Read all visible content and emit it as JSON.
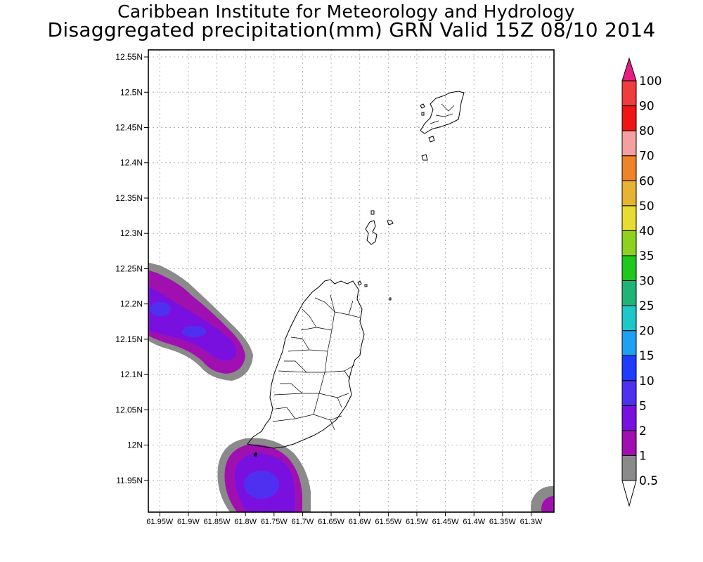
{
  "header": {
    "title": "Caribbean Institute for Meteorology and Hydrology",
    "subtitle": "Disaggregated precipitation(mm) GRN Valid 15Z 08/10 2014"
  },
  "map": {
    "lon_range": [
      -61.97,
      -61.26
    ],
    "lat_range": [
      11.905,
      12.56
    ],
    "y_ticks": [
      "12.55N",
      "12.5N",
      "12.45N",
      "12.4N",
      "12.35N",
      "12.3N",
      "12.25N",
      "12.2N",
      "12.15N",
      "12.1N",
      "12.05N",
      "12N",
      "11.95N"
    ],
    "x_ticks": [
      "61.95W",
      "61.9W",
      "61.85W",
      "61.8W",
      "61.75W",
      "61.7W",
      "61.65W",
      "61.6W",
      "61.55W",
      "61.5W",
      "61.45W",
      "61.4W",
      "61.35W",
      "61.3W"
    ],
    "grid": "dotted",
    "islands": [
      "Grenada",
      "Carriacou",
      "Petite Martinique",
      "Grenadines islets"
    ]
  },
  "colorbar": {
    "labels": [
      "0.5",
      "1",
      "2",
      "5",
      "10",
      "15",
      "20",
      "25",
      "30",
      "35",
      "40",
      "50",
      "60",
      "70",
      "80",
      "90",
      "100"
    ],
    "colors": [
      "#ffffff",
      "#8a8a8a",
      "#a010b0",
      "#7a10e0",
      "#5030f0",
      "#1e3cff",
      "#1ea0f5",
      "#1ec8c8",
      "#1eb478",
      "#1ec81e",
      "#8cd21e",
      "#e6dc32",
      "#e6b432",
      "#f08228",
      "#f5a0a0",
      "#f01414",
      "#f03c3c",
      "#e61e82"
    ],
    "legend_position": "right"
  },
  "precip_areas": [
    {
      "region": "northwest band",
      "max_category": "5"
    },
    {
      "region": "southwest of Grenada",
      "max_category": "5"
    },
    {
      "region": "southeast corner",
      "max_category": "2"
    }
  ]
}
